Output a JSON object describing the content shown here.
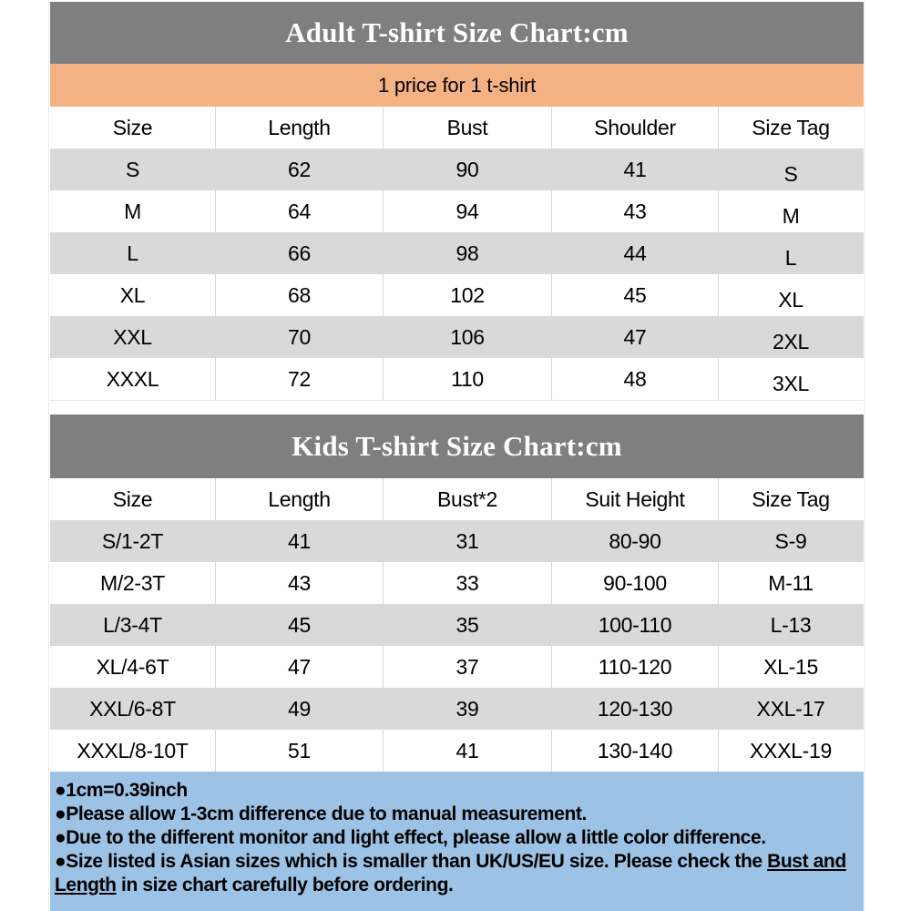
{
  "adult_chart": {
    "title": "Adult T-shirt Size Chart:cm",
    "price_note": "1 price for 1 t-shirt",
    "columns": [
      "Size",
      "Length",
      "Bust",
      "Shoulder",
      "Size Tag"
    ],
    "rows": [
      [
        "S",
        "62",
        "90",
        "41",
        "S"
      ],
      [
        "M",
        "64",
        "94",
        "43",
        "M"
      ],
      [
        "L",
        "66",
        "98",
        "44",
        "L"
      ],
      [
        "XL",
        "68",
        "102",
        "45",
        "XL"
      ],
      [
        "XXL",
        "70",
        "106",
        "47",
        "2XL"
      ],
      [
        "XXXL",
        "72",
        "110",
        "48",
        "3XL"
      ]
    ]
  },
  "kids_chart": {
    "title": "Kids T-shirt Size Chart:cm",
    "columns": [
      "Size",
      "Length",
      "Bust*2",
      "Suit Height",
      "Size Tag"
    ],
    "rows": [
      [
        "S/1-2T",
        "41",
        "31",
        "80-90",
        "S-9"
      ],
      [
        "M/2-3T",
        "43",
        "33",
        "90-100",
        "M-11"
      ],
      [
        "L/3-4T",
        "45",
        "35",
        "100-110",
        "L-13"
      ],
      [
        "XL/4-6T",
        "47",
        "37",
        "110-120",
        "XL-15"
      ],
      [
        "XXL/6-8T",
        "49",
        "39",
        "120-130",
        "XXL-17"
      ],
      [
        "XXXL/8-10T",
        "51",
        "41",
        "130-140",
        "XXXL-19"
      ]
    ]
  },
  "footer": {
    "note1": "●1cm=0.39inch",
    "note2": "●Please allow 1-3cm difference due to manual measurement.",
    "note3": "●Due to the different monitor and light effect, please allow a little color difference.",
    "note4_pre": "●Size listed is Asian sizes which is smaller than UK/US/EU size. Please check the ",
    "note4_underlined": "Bust and Length",
    "note4_post": " in size chart carefully before ordering."
  },
  "colors": {
    "title_bar": "#7F7F7F",
    "price_bar": "#F4B183",
    "row_stripe": "#D9D9D9",
    "footer_bg": "#9CC2E5"
  }
}
